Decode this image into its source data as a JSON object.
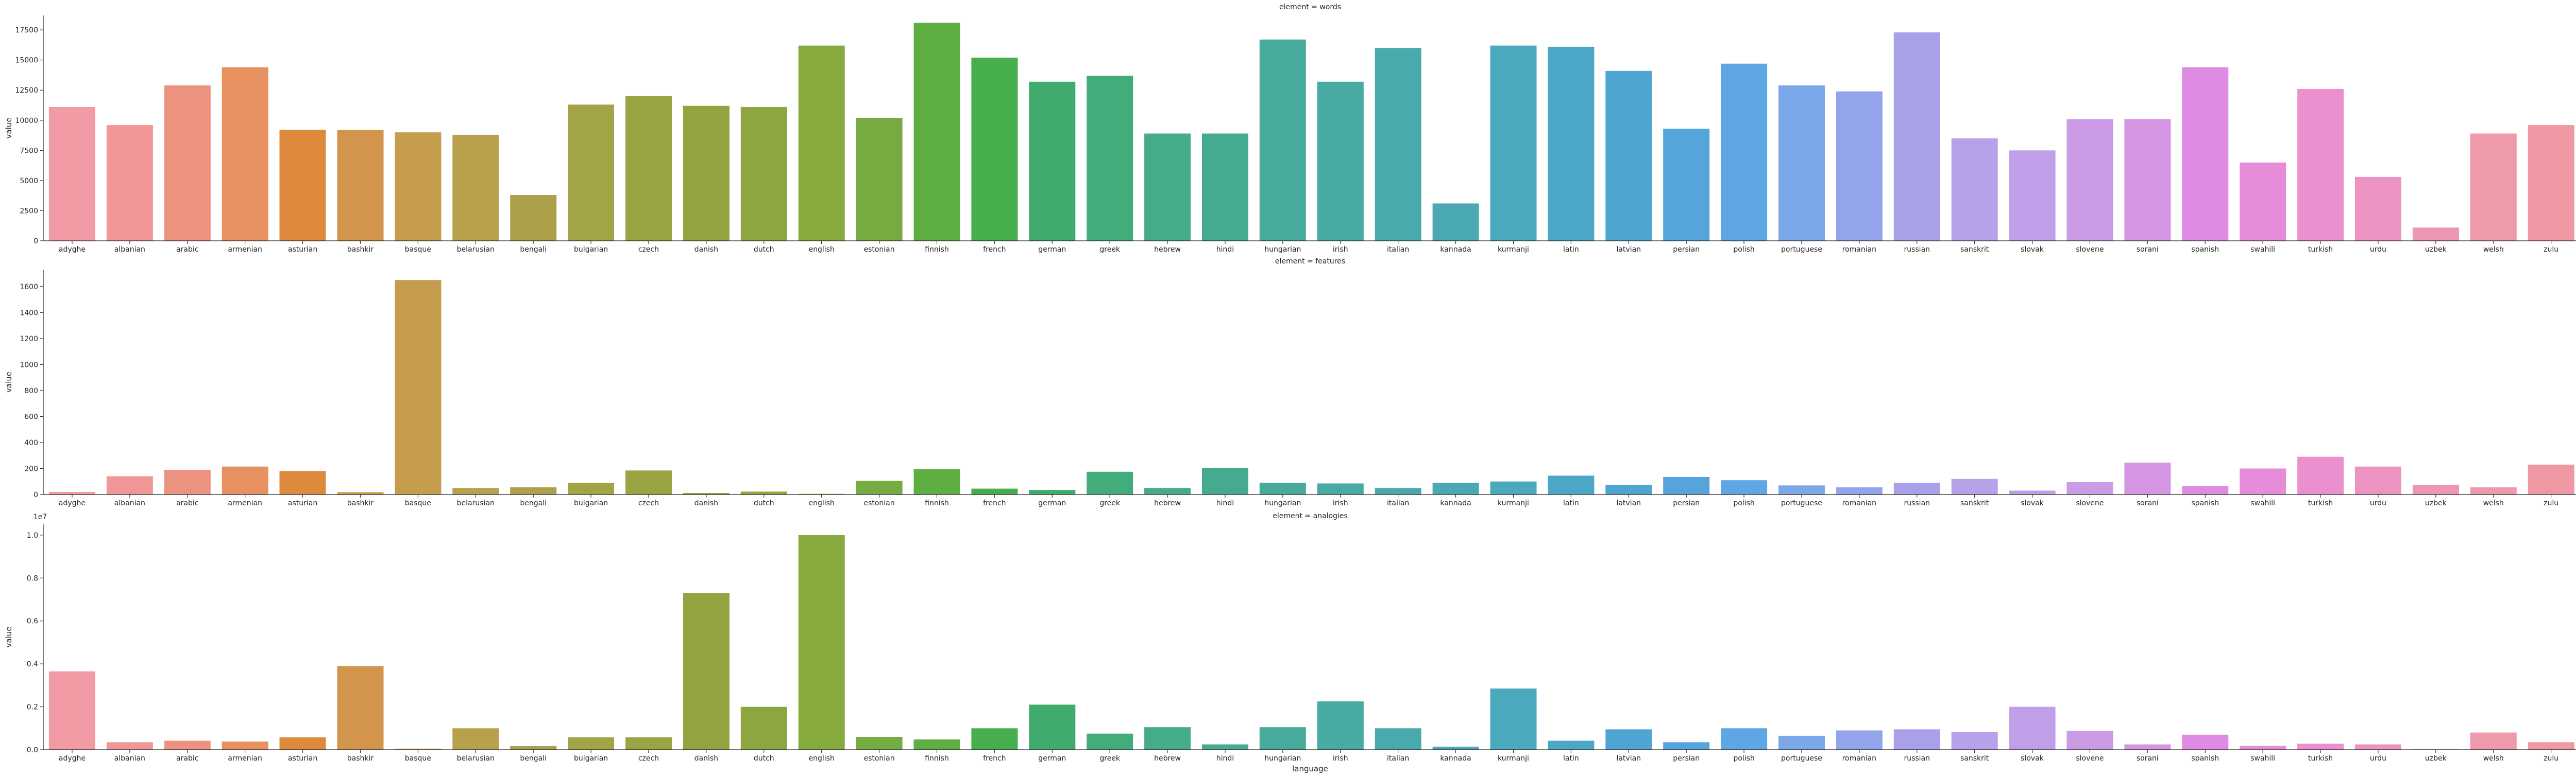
{
  "chart_data": [
    {
      "type": "bar",
      "title": "element = words",
      "xlabel": "",
      "ylabel": "value",
      "ylim": [
        0,
        18700
      ],
      "yticks": [
        0,
        2500,
        5000,
        7500,
        10000,
        12500,
        15000,
        17500
      ],
      "multiplier": "",
      "categories": [
        "adyghe",
        "albanian",
        "arabic",
        "armenian",
        "asturian",
        "bashkir",
        "basque",
        "belarusian",
        "bengali",
        "bulgarian",
        "czech",
        "danish",
        "dutch",
        "english",
        "estonian",
        "finnish",
        "french",
        "german",
        "greek",
        "hebrew",
        "hindi",
        "hungarian",
        "irish",
        "italian",
        "kannada",
        "kurmanji",
        "latin",
        "latvian",
        "persian",
        "polish",
        "portuguese",
        "romanian",
        "russian",
        "sanskrit",
        "slovak",
        "slovene",
        "sorani",
        "spanish",
        "swahili",
        "turkish",
        "urdu",
        "uzbek",
        "welsh",
        "zulu"
      ],
      "values": [
        11100,
        9600,
        12900,
        14400,
        9200,
        9200,
        9000,
        8800,
        3800,
        11300,
        12000,
        11200,
        11100,
        16200,
        10200,
        18100,
        15200,
        13200,
        13700,
        8900,
        8900,
        16700,
        13200,
        16000,
        3100,
        16200,
        16100,
        14100,
        9300,
        14700,
        12900,
        12400,
        17300,
        8500,
        7500,
        10100,
        10100,
        14400,
        6500,
        12600,
        5300,
        1100,
        8900,
        9600
      ]
    },
    {
      "type": "bar",
      "title": "element = features",
      "xlabel": "",
      "ylabel": "value",
      "ylim": [
        0,
        1730
      ],
      "yticks": [
        0,
        200,
        400,
        600,
        800,
        1000,
        1200,
        1400,
        1600
      ],
      "multiplier": "",
      "categories": [
        "adyghe",
        "albanian",
        "arabic",
        "armenian",
        "asturian",
        "bashkir",
        "basque",
        "belarusian",
        "bengali",
        "bulgarian",
        "czech",
        "danish",
        "dutch",
        "english",
        "estonian",
        "finnish",
        "french",
        "german",
        "greek",
        "hebrew",
        "hindi",
        "hungarian",
        "irish",
        "italian",
        "kannada",
        "kurmanji",
        "latin",
        "latvian",
        "persian",
        "polish",
        "portuguese",
        "romanian",
        "russian",
        "sanskrit",
        "slovak",
        "slovene",
        "sorani",
        "spanish",
        "swahili",
        "turkish",
        "urdu",
        "uzbek",
        "welsh",
        "zulu"
      ],
      "values": [
        20,
        140,
        190,
        215,
        180,
        18,
        1650,
        50,
        55,
        90,
        185,
        12,
        22,
        5,
        105,
        195,
        45,
        35,
        175,
        50,
        205,
        90,
        85,
        50,
        90,
        100,
        145,
        75,
        135,
        110,
        70,
        55,
        90,
        120,
        30,
        95,
        245,
        65,
        200,
        290,
        215,
        75,
        55,
        230
      ]
    },
    {
      "type": "bar",
      "title": "element = analogies",
      "xlabel": "language",
      "ylabel": "value",
      "ylim": [
        0,
        10500000
      ],
      "yticks": [
        0,
        2000000,
        4000000,
        6000000,
        8000000,
        10000000
      ],
      "ytick_labels": [
        "0.0",
        "0.2",
        "0.4",
        "0.6",
        "0.8",
        "1.0"
      ],
      "multiplier": "1e7",
      "categories": [
        "adyghe",
        "albanian",
        "arabic",
        "armenian",
        "asturian",
        "bashkir",
        "basque",
        "belarusian",
        "bengali",
        "bulgarian",
        "czech",
        "danish",
        "dutch",
        "english",
        "estonian",
        "finnish",
        "french",
        "german",
        "greek",
        "hebrew",
        "hindi",
        "hungarian",
        "irish",
        "italian",
        "kannada",
        "kurmanji",
        "latin",
        "latvian",
        "persian",
        "polish",
        "portuguese",
        "romanian",
        "russian",
        "sanskrit",
        "slovak",
        "slovene",
        "sorani",
        "spanish",
        "swahili",
        "turkish",
        "urdu",
        "uzbek",
        "welsh",
        "zulu"
      ],
      "values": [
        3650000,
        350000,
        420000,
        380000,
        580000,
        3900000,
        50000,
        1000000,
        170000,
        580000,
        580000,
        7300000,
        2000000,
        10000000,
        600000,
        480000,
        1000000,
        2100000,
        750000,
        1050000,
        250000,
        1050000,
        2250000,
        1000000,
        140000,
        2850000,
        420000,
        950000,
        350000,
        1000000,
        650000,
        900000,
        950000,
        820000,
        2000000,
        880000,
        250000,
        700000,
        180000,
        280000,
        250000,
        20000,
        800000,
        350000
      ]
    }
  ],
  "colors": [
    "#f19ba5",
    "#f19696",
    "#ec9380",
    "#e6915f",
    "#dd8a3c",
    "#d3944c",
    "#c69c4d",
    "#b9a04c",
    "#aca14a",
    "#a2a446",
    "#9ba442",
    "#94a33f",
    "#8ea63f",
    "#87aa3e",
    "#76ab42",
    "#5fae44",
    "#46ae4c",
    "#40ab6c",
    "#42ad7a",
    "#44ac86",
    "#45ab90",
    "#47aa9a",
    "#47aaa3",
    "#48aaac",
    "#4aa9b4",
    "#4ba9bd",
    "#4ca7c6",
    "#4fa5d1",
    "#55a4dc",
    "#5ea6e4",
    "#7aa8e8",
    "#93a4ea",
    "#a8a1ea",
    "#b7a2ea",
    "#c09fe8",
    "#cb9be6",
    "#d695e3",
    "#df8ae3",
    "#e78cd9",
    "#eb8fcf",
    "#ed93c2",
    "#ee97b4",
    "#ee9aab",
    "#ed98a2"
  ]
}
